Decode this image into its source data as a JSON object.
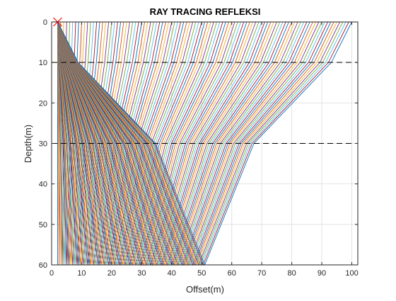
{
  "chart_data": {
    "type": "line",
    "title": "RAY TRACING REFLEKSI",
    "xlabel": "Offset(m)",
    "ylabel": "Depth(m)",
    "xlim": [
      0,
      102
    ],
    "ylim": [
      0,
      60
    ],
    "y_reversed": true,
    "grid": true,
    "xticks": [
      "0",
      "10",
      "20",
      "30",
      "40",
      "50",
      "60",
      "70",
      "80",
      "90",
      "100"
    ],
    "yticks": [
      "0",
      "10",
      "20",
      "30",
      "40",
      "50",
      "60"
    ],
    "source": {
      "x": 2,
      "y": 0,
      "marker": "x",
      "color": "#ff0000"
    },
    "reflector_depths": [
      10,
      30,
      60
    ],
    "reflector_style": "dashed",
    "receiver_offsets": {
      "start": 2,
      "end": 100,
      "step": 1
    },
    "layer_velocities_relative": [
      1.0,
      1.4,
      0.85
    ],
    "line_colors": [
      "#0072bd",
      "#d95319",
      "#edb120",
      "#7e2f8e",
      "#77ac30",
      "#4dbeee",
      "#a2142f"
    ]
  }
}
